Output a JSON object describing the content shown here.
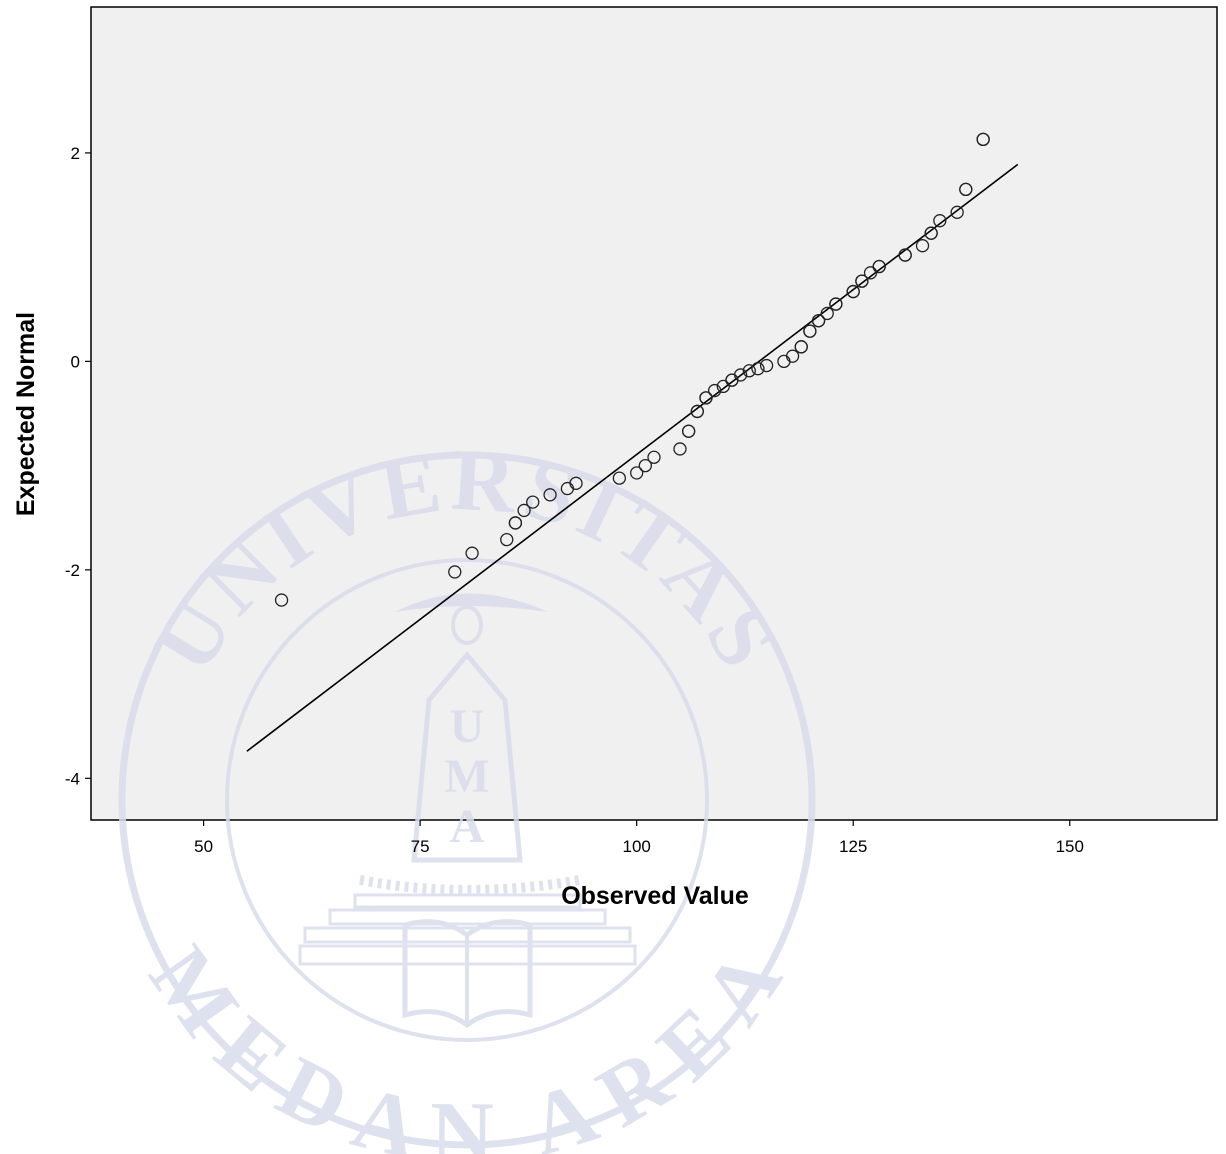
{
  "chart_data": {
    "type": "scatter",
    "title": "",
    "xlabel": "Observed Value",
    "ylabel": "Expected Normal",
    "xlim": [
      37,
      167
    ],
    "ylim": [
      -4.4,
      3.4
    ],
    "x_ticks": [
      50,
      75,
      100,
      125,
      150
    ],
    "y_ticks": [
      -4,
      -2,
      0,
      2
    ],
    "x_tick_labels": [
      "50",
      "75",
      "100",
      "125",
      "150"
    ],
    "y_tick_labels": [
      "-4",
      "-2",
      "0",
      "2"
    ],
    "grid": false,
    "plot_background": "#f0f0f0",
    "reference_line": {
      "x": [
        55,
        144
      ],
      "y": [
        -3.74,
        1.89
      ]
    },
    "points": [
      {
        "x": 59,
        "y": -2.29
      },
      {
        "x": 79,
        "y": -2.02
      },
      {
        "x": 81,
        "y": -1.84
      },
      {
        "x": 85,
        "y": -1.71
      },
      {
        "x": 86,
        "y": -1.55
      },
      {
        "x": 86,
        "y": -1.55
      },
      {
        "x": 87,
        "y": -1.43
      },
      {
        "x": 88,
        "y": -1.35
      },
      {
        "x": 90,
        "y": -1.28
      },
      {
        "x": 92,
        "y": -1.22
      },
      {
        "x": 93,
        "y": -1.17
      },
      {
        "x": 98,
        "y": -1.12
      },
      {
        "x": 100,
        "y": -1.07
      },
      {
        "x": 101,
        "y": -1.0
      },
      {
        "x": 102,
        "y": -0.92
      },
      {
        "x": 105,
        "y": -0.84
      },
      {
        "x": 106,
        "y": -0.67
      },
      {
        "x": 106,
        "y": -0.67
      },
      {
        "x": 107,
        "y": -0.48
      },
      {
        "x": 107,
        "y": -0.48
      },
      {
        "x": 108,
        "y": -0.35
      },
      {
        "x": 108,
        "y": -0.35
      },
      {
        "x": 109,
        "y": -0.28
      },
      {
        "x": 110,
        "y": -0.24
      },
      {
        "x": 111,
        "y": -0.18
      },
      {
        "x": 111,
        "y": -0.18
      },
      {
        "x": 112,
        "y": -0.13
      },
      {
        "x": 113,
        "y": -0.09
      },
      {
        "x": 114,
        "y": -0.07
      },
      {
        "x": 115,
        "y": -0.04
      },
      {
        "x": 117,
        "y": 0.0
      },
      {
        "x": 118,
        "y": 0.05
      },
      {
        "x": 119,
        "y": 0.14
      },
      {
        "x": 119,
        "y": 0.14
      },
      {
        "x": 120,
        "y": 0.29
      },
      {
        "x": 120,
        "y": 0.29
      },
      {
        "x": 121,
        "y": 0.39
      },
      {
        "x": 121,
        "y": 0.39
      },
      {
        "x": 122,
        "y": 0.46
      },
      {
        "x": 123,
        "y": 0.55
      },
      {
        "x": 123,
        "y": 0.55
      },
      {
        "x": 125,
        "y": 0.67
      },
      {
        "x": 125,
        "y": 0.67
      },
      {
        "x": 126,
        "y": 0.77
      },
      {
        "x": 126,
        "y": 0.77
      },
      {
        "x": 127,
        "y": 0.85
      },
      {
        "x": 128,
        "y": 0.91
      },
      {
        "x": 128,
        "y": 0.91
      },
      {
        "x": 131,
        "y": 1.02
      },
      {
        "x": 131,
        "y": 1.02
      },
      {
        "x": 133,
        "y": 1.11
      },
      {
        "x": 134,
        "y": 1.23
      },
      {
        "x": 134,
        "y": 1.23
      },
      {
        "x": 135,
        "y": 1.35
      },
      {
        "x": 137,
        "y": 1.43
      },
      {
        "x": 138,
        "y": 1.65
      },
      {
        "x": 138,
        "y": 1.65
      },
      {
        "x": 140,
        "y": 2.13
      },
      {
        "x": 140,
        "y": 2.13
      }
    ]
  },
  "watermark": {
    "top_text": "UNIVERSITAS",
    "bottom_text": "MEDAN AREA",
    "emblem_letters": [
      "U",
      "M",
      "A"
    ],
    "color": "#d9dcec"
  }
}
